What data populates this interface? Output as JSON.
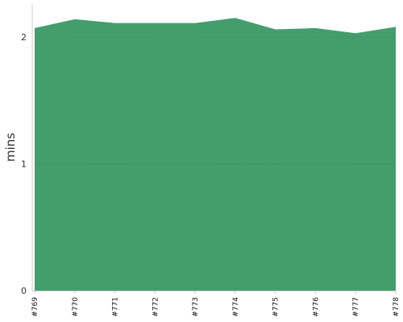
{
  "chart_data": {
    "type": "area",
    "title": "",
    "xlabel": "",
    "ylabel": "mins",
    "categories": [
      "#769",
      "#770",
      "#771",
      "#772",
      "#773",
      "#774",
      "#775",
      "#776",
      "#777",
      "#778"
    ],
    "values": [
      2.07,
      2.14,
      2.11,
      2.11,
      2.11,
      2.15,
      2.06,
      2.07,
      2.03,
      2.08
    ],
    "yticks": [
      0,
      1,
      2
    ],
    "ylim": [
      0,
      2.26
    ],
    "grid": "horizontal-dotted",
    "legend": "none",
    "colors": {
      "fill": "#459d6e",
      "grid": "#3e8a5f",
      "axis": "#cccccc"
    }
  }
}
